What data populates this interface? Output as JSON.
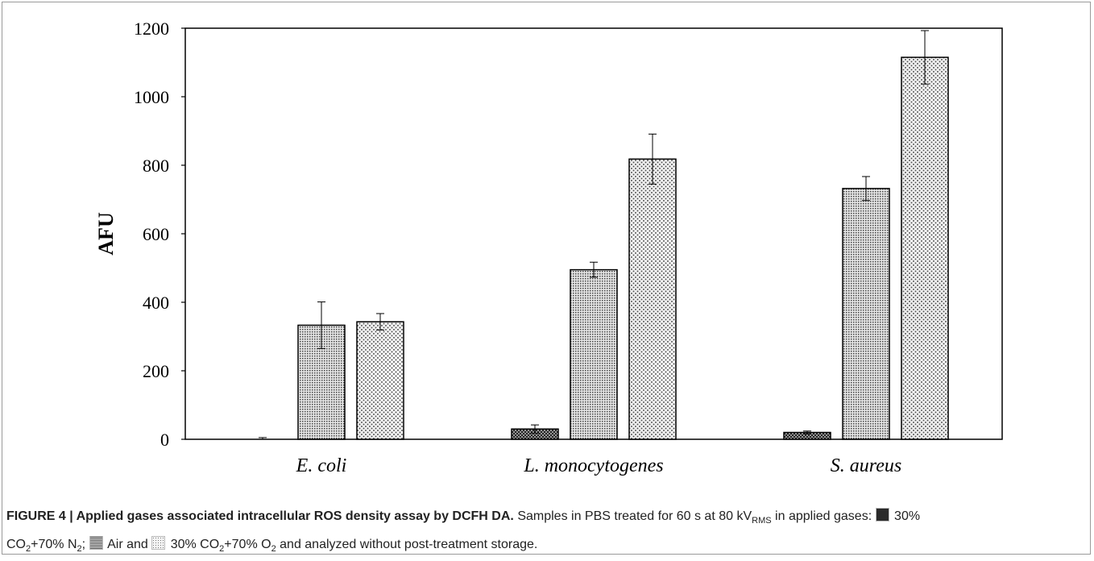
{
  "chart_data": {
    "type": "bar",
    "categories": [
      "E. coli",
      "L. monocytogenes",
      "S. aureus"
    ],
    "series": [
      {
        "name": "30% CO2+70% N2",
        "values": [
          0,
          30,
          20
        ],
        "errors": [
          5,
          12,
          4
        ]
      },
      {
        "name": "Air",
        "values": [
          333,
          495,
          732
        ],
        "errors": [
          68,
          22,
          35
        ]
      },
      {
        "name": "30% CO2+70% O2",
        "values": [
          343,
          818,
          1115
        ],
        "errors": [
          24,
          73,
          78
        ]
      }
    ],
    "title": "",
    "xlabel": "",
    "ylabel": "AFU",
    "ylim": [
      0,
      1200
    ],
    "yticks": [
      0,
      200,
      400,
      600,
      800,
      1000,
      1200
    ],
    "grid": false,
    "legend": "none"
  },
  "caption": {
    "label": "FIGURE 4 | Applied gases associated intracellular ROS density assay by DCFH DA.",
    "text_1": "Samples in PBS treated for 60 s at 80 kV",
    "sub_rms": "RMS",
    "text_2": "in applied gases:",
    "legend_1a": "30%",
    "legend_1b": "CO",
    "legend_1c": "+70% N",
    "legend_1d": ";",
    "legend_2": "Air and",
    "legend_3a": "30% CO",
    "legend_3b": "+70% O",
    "text_3": "and analyzed without post-treatment storage.",
    "sub_2": "2"
  }
}
